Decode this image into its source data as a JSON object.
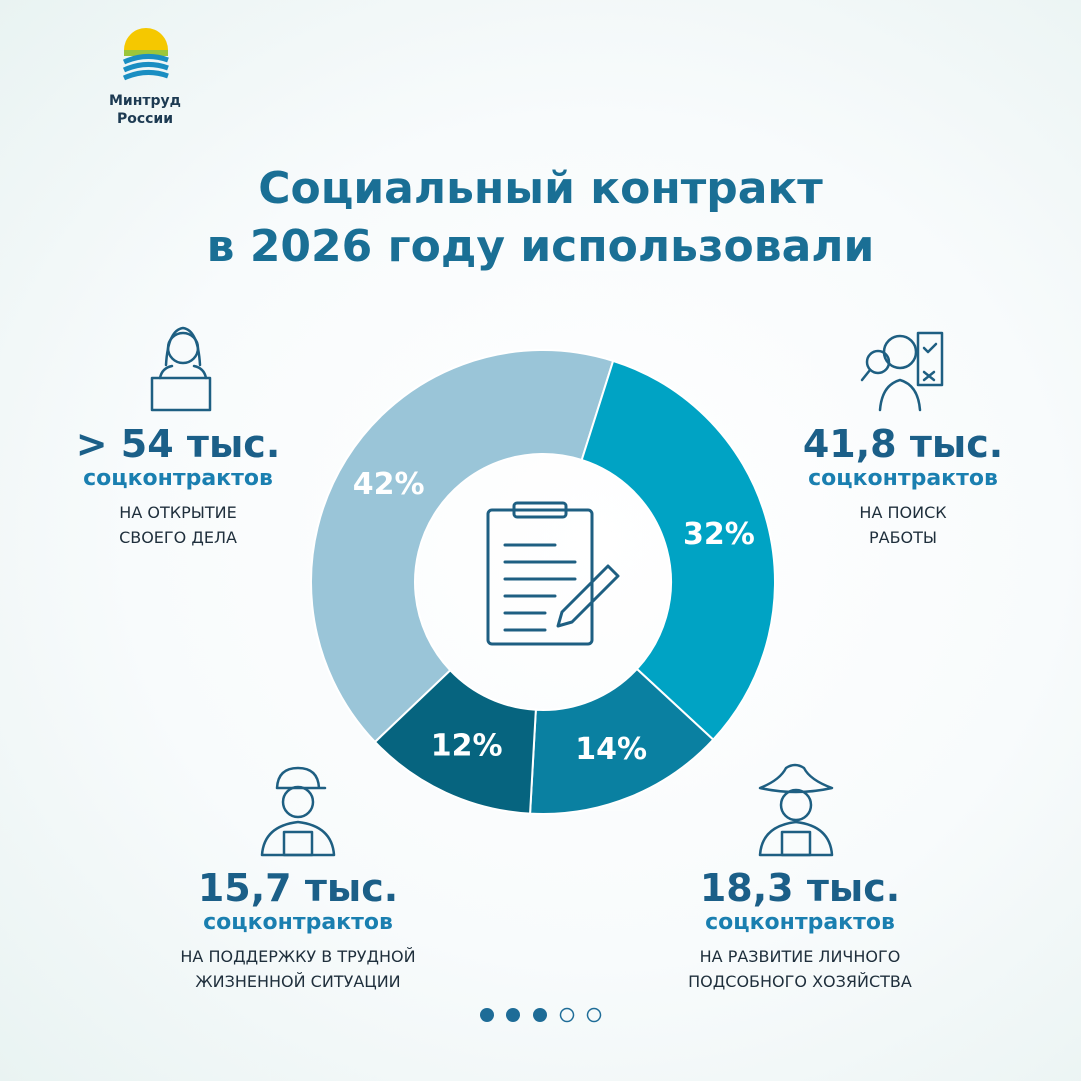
{
  "header": {
    "logo": [
      "Минтруд",
      "России"
    ],
    "title": [
      "Социальный контракт",
      "в 2026 году использовали"
    ]
  },
  "chart_data": {
    "type": "donut",
    "values": [
      42,
      32,
      14,
      12
    ],
    "value_labels": [
      "42%",
      "32%",
      "14%",
      "12%"
    ],
    "colors": [
      "#9ac5d8",
      "#00a3c4",
      "#0a80a1",
      "#06647f"
    ]
  },
  "callouts": [
    {
      "amount": "> 54 тыс.",
      "unit": "соцконтрактов",
      "purpose": [
        "НА ОТКРЫТИЕ",
        "СВОЕГО ДЕЛА"
      ]
    },
    {
      "amount": "41,8 тыс.",
      "unit": "соцконтрактов",
      "purpose": [
        "НА ПОИСК",
        "РАБОТЫ"
      ]
    },
    {
      "amount": "15,7 тыс.",
      "unit": "соцконтрактов",
      "purpose": [
        "НА ПОДДЕРЖКУ В ТРУДНОЙ",
        "ЖИЗНЕННОЙ СИТУАЦИИ"
      ]
    },
    {
      "amount": "18,3 тыс.",
      "unit": "соцконтрактов",
      "purpose": [
        "НА РАЗВИТИЕ ЛИЧНОГО",
        "ПОДСОБНОГО ХОЗЯЙСТВА"
      ]
    }
  ]
}
